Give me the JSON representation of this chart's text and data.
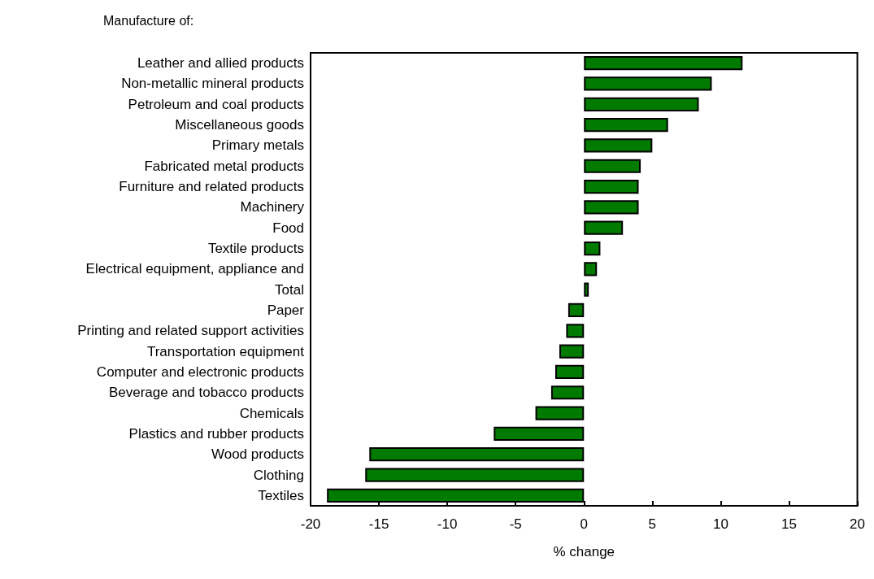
{
  "chart_data": {
    "type": "bar",
    "orientation": "horizontal",
    "ylabel": "Manufacture of:",
    "xlabel": "% change",
    "categories": [
      "Leather and allied products",
      "Non-metallic mineral products",
      "Petroleum and coal products",
      "Miscellaneous goods",
      "Primary metals",
      "Fabricated metal products",
      "Furniture and related products",
      "Machinery",
      "Food",
      "Textile products",
      "Electrical equipment, appliance and",
      "Total",
      "Paper",
      "Printing and related support activities",
      "Transportation equipment",
      "Computer and electronic products",
      "Beverage and tobacco products",
      "Chemicals",
      "Plastics and rubber products",
      "Wood products",
      "Clothing",
      "Textiles"
    ],
    "values": [
      11.6,
      9.35,
      8.4,
      6.15,
      5.0,
      4.15,
      4.0,
      4.0,
      2.85,
      1.2,
      0.95,
      0.35,
      -1.15,
      -1.3,
      -1.8,
      -2.1,
      -2.4,
      -3.55,
      -6.6,
      -15.7,
      -16.0,
      -18.8
    ],
    "color": "#007b00",
    "xlim": [
      -20,
      20
    ],
    "xticks": [
      -20,
      -15,
      -10,
      -5,
      0,
      5,
      10,
      15,
      20
    ],
    "grid": false
  }
}
